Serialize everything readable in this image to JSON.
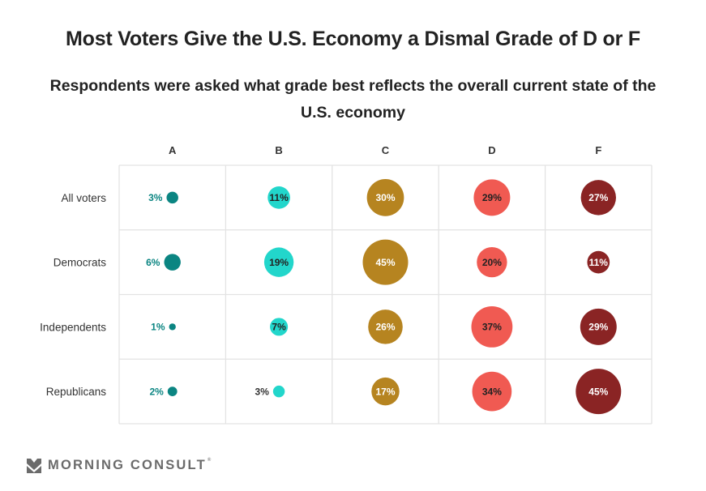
{
  "header": {
    "title": "Most Voters Give the U.S. Economy a Dismal Grade of D or F",
    "subtitle": "Respondents were asked what grade best reflects the overall current state of the U.S. economy"
  },
  "chart_data": {
    "type": "bubble-matrix",
    "title": "Most Voters Give the U.S. Economy a Dismal Grade of D or F",
    "subtitle": "Respondents were asked what grade best reflects the overall current state of the U.S. economy",
    "columns": [
      "A",
      "B",
      "C",
      "D",
      "F"
    ],
    "rows": [
      "All voters",
      "Democrats",
      "Independents",
      "Republicans"
    ],
    "unit": "%",
    "values": [
      [
        3,
        11,
        30,
        29,
        27
      ],
      [
        6,
        19,
        45,
        20,
        11
      ],
      [
        1,
        7,
        26,
        37,
        29
      ],
      [
        2,
        3,
        17,
        34,
        45
      ]
    ],
    "colors": {
      "A": "#0b8582",
      "B": "#22d6cb",
      "C": "#b68420",
      "D": "#f05a52",
      "F": "#8a2424"
    },
    "label_colors": {
      "A": "#0b8582",
      "B": "#222222",
      "C": "#ffffff",
      "D": "#222222",
      "F": "#ffffff"
    },
    "outside_label_color_B": "#333333",
    "grid": true
  },
  "footer": {
    "logo_text": "MORNING CONSULT",
    "logo_mark": "®"
  }
}
